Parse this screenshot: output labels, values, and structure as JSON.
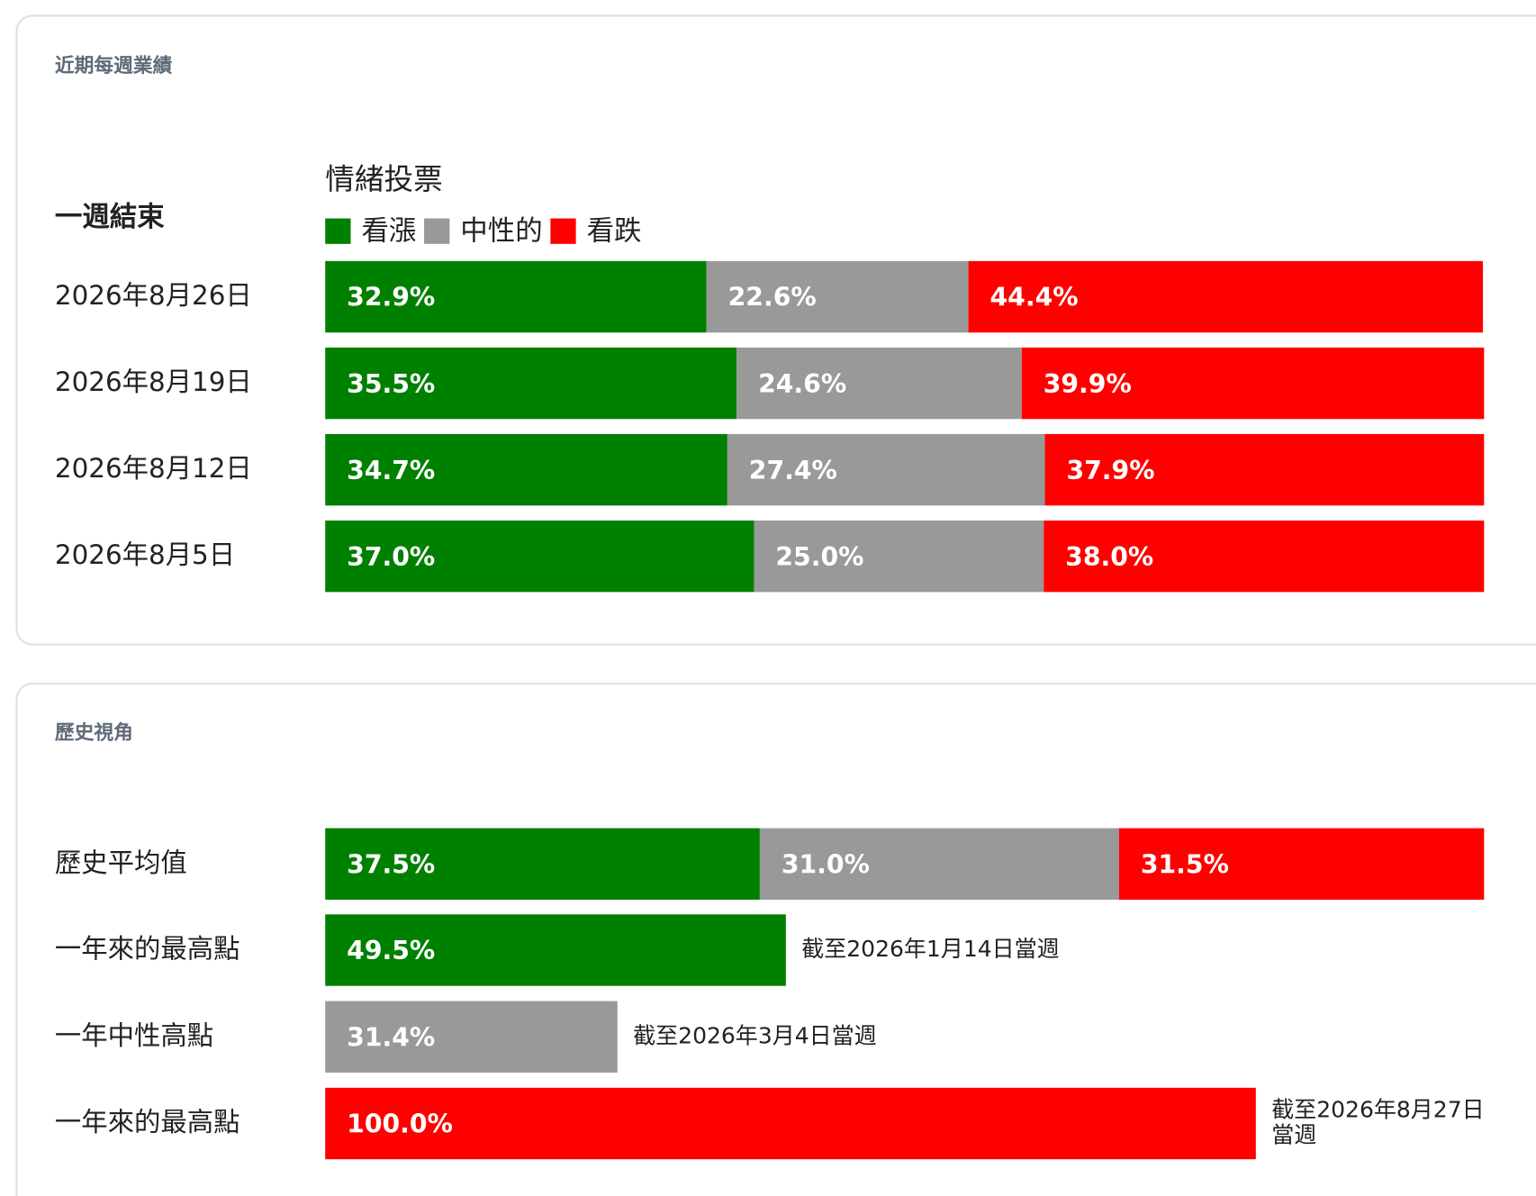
{
  "weekly": {
    "title": "近期每週業績",
    "row_header": "一週結束",
    "legend_title": "情緒投票",
    "series": [
      {
        "name": "看漲",
        "color": "#008000"
      },
      {
        "name": "中性的",
        "color": "#999999"
      },
      {
        "name": "看跌",
        "color": "#ff0000"
      }
    ],
    "rows": [
      {
        "label": "2026年8月26日",
        "values": [
          32.9,
          22.6,
          44.4
        ],
        "value_labels": [
          "32.9%",
          "22.6%",
          "44.4%"
        ]
      },
      {
        "label": "2026年8月19日",
        "values": [
          35.5,
          24.6,
          39.9
        ],
        "value_labels": [
          "35.5%",
          "24.6%",
          "39.9%"
        ]
      },
      {
        "label": "2026年8月12日",
        "values": [
          34.7,
          27.4,
          37.9
        ],
        "value_labels": [
          "34.7%",
          "27.4%",
          "37.9%"
        ]
      },
      {
        "label": "2026年8月5日",
        "values": [
          37.0,
          25.0,
          38.0
        ],
        "value_labels": [
          "37.0%",
          "25.0%",
          "38.0%"
        ]
      }
    ]
  },
  "history": {
    "title": "歷史視角",
    "average": {
      "label": "歷史平均值",
      "values": [
        37.5,
        31.0,
        31.5
      ],
      "value_labels": [
        "37.5%",
        "31.0%",
        "31.5%"
      ]
    },
    "highs": [
      {
        "label": "一年來的最高點",
        "value": 49.5,
        "value_label": "49.5%",
        "color": "#008000",
        "note": "截至2026年1月14日當週"
      },
      {
        "label": "一年中性高點",
        "value": 31.4,
        "value_label": "31.4%",
        "color": "#999999",
        "note": "截至2026年3月4日當週"
      },
      {
        "label": "一年來的最高點",
        "value": 100.0,
        "value_label": "100.0%",
        "color": "#ff0000",
        "note": "截至2026年8月27日當週"
      }
    ]
  }
}
